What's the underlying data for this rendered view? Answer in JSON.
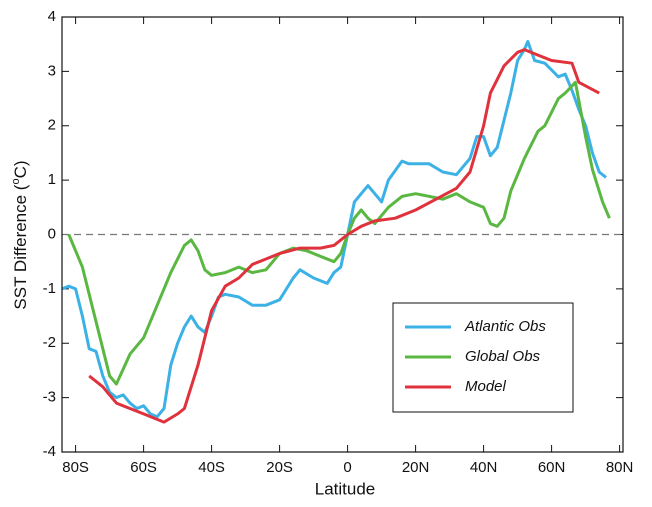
{
  "chart_data": {
    "type": "line",
    "xlabel": "Latitude",
    "ylabel": [
      "SST Difference (",
      "o",
      "C)"
    ],
    "xlim": [
      -84,
      81
    ],
    "ylim": [
      -4,
      4
    ],
    "xticks": [
      {
        "value": -80,
        "label": "80S"
      },
      {
        "value": -60,
        "label": "60S"
      },
      {
        "value": -40,
        "label": "40S"
      },
      {
        "value": -20,
        "label": "20S"
      },
      0,
      {
        "value": 20,
        "label": "20N"
      },
      {
        "value": 40,
        "label": "40N"
      },
      {
        "value": 60,
        "label": "60N"
      },
      {
        "value": 80,
        "label": "80N"
      }
    ],
    "yticks": [
      -4,
      -3,
      -2,
      -1,
      0,
      1,
      2,
      3,
      4
    ],
    "reference_line": 0,
    "legend": "lower right",
    "series": [
      {
        "name": "Atlantic Obs",
        "color": "#3bb1e6",
        "x": [
          -84,
          -82,
          -80,
          -78,
          -76,
          -74,
          -72,
          -70,
          -68,
          -66,
          -64,
          -62,
          -60,
          -58,
          -56,
          -54,
          -52,
          -50,
          -48,
          -46,
          -44,
          -42,
          -40,
          -38,
          -36,
          -32,
          -28,
          -24,
          -20,
          -16,
          -14,
          -10,
          -6,
          -4,
          -2,
          0,
          2,
          4,
          6,
          8,
          10,
          12,
          16,
          18,
          24,
          28,
          32,
          36,
          38,
          40,
          42,
          44,
          46,
          48,
          50,
          52,
          53,
          55,
          58,
          62,
          64,
          66,
          68,
          70,
          72,
          74,
          76
        ],
        "values": [
          -1.0,
          -0.95,
          -1.0,
          -1.5,
          -2.1,
          -2.15,
          -2.6,
          -2.9,
          -3.0,
          -2.95,
          -3.1,
          -3.2,
          -3.15,
          -3.3,
          -3.35,
          -3.2,
          -2.4,
          -2.0,
          -1.7,
          -1.5,
          -1.7,
          -1.8,
          -1.5,
          -1.15,
          -1.1,
          -1.15,
          -1.3,
          -1.3,
          -1.2,
          -0.8,
          -0.65,
          -0.8,
          -0.9,
          -0.7,
          -0.6,
          0.0,
          0.6,
          0.75,
          0.9,
          0.75,
          0.6,
          1.0,
          1.35,
          1.3,
          1.3,
          1.15,
          1.1,
          1.4,
          1.8,
          1.8,
          1.45,
          1.6,
          2.1,
          2.6,
          3.2,
          3.4,
          3.55,
          3.2,
          3.15,
          2.9,
          2.95,
          2.65,
          2.3,
          2.0,
          1.5,
          1.15,
          1.05
        ]
      },
      {
        "name": "Global Obs",
        "color": "#5ab842",
        "x": [
          -82,
          -78,
          -74,
          -70,
          -68,
          -64,
          -60,
          -56,
          -52,
          -48,
          -46,
          -44,
          -42,
          -40,
          -36,
          -32,
          -28,
          -24,
          -20,
          -16,
          -12,
          -8,
          -4,
          -2,
          0,
          2,
          4,
          6,
          8,
          12,
          16,
          20,
          24,
          28,
          32,
          36,
          40,
          42,
          44,
          46,
          48,
          52,
          56,
          58,
          62,
          64,
          67,
          70,
          72,
          75,
          77
        ],
        "values": [
          0.0,
          -0.6,
          -1.6,
          -2.6,
          -2.75,
          -2.2,
          -1.9,
          -1.3,
          -0.7,
          -0.2,
          -0.1,
          -0.3,
          -0.65,
          -0.75,
          -0.7,
          -0.6,
          -0.7,
          -0.65,
          -0.35,
          -0.25,
          -0.3,
          -0.4,
          -0.5,
          -0.35,
          0.0,
          0.3,
          0.45,
          0.3,
          0.2,
          0.5,
          0.7,
          0.75,
          0.7,
          0.65,
          0.75,
          0.6,
          0.5,
          0.2,
          0.15,
          0.3,
          0.8,
          1.4,
          1.9,
          2.0,
          2.5,
          2.6,
          2.8,
          1.8,
          1.2,
          0.6,
          0.3
        ]
      },
      {
        "name": "Model",
        "color": "#e0323c",
        "x": [
          -76,
          -72,
          -68,
          -64,
          -60,
          -56,
          -54,
          -50,
          -48,
          -44,
          -40,
          -36,
          -32,
          -28,
          -24,
          -20,
          -14,
          -8,
          -4,
          0,
          4,
          8,
          14,
          20,
          26,
          32,
          36,
          40,
          42,
          46,
          50,
          52,
          56,
          60,
          66,
          68,
          74
        ],
        "values": [
          -2.6,
          -2.8,
          -3.1,
          -3.2,
          -3.3,
          -3.4,
          -3.45,
          -3.3,
          -3.2,
          -2.4,
          -1.4,
          -0.95,
          -0.8,
          -0.55,
          -0.45,
          -0.35,
          -0.25,
          -0.25,
          -0.2,
          0.0,
          0.15,
          0.25,
          0.3,
          0.45,
          0.65,
          0.85,
          1.15,
          2.0,
          2.6,
          3.1,
          3.35,
          3.4,
          3.3,
          3.2,
          3.15,
          2.8,
          2.6
        ]
      }
    ]
  }
}
